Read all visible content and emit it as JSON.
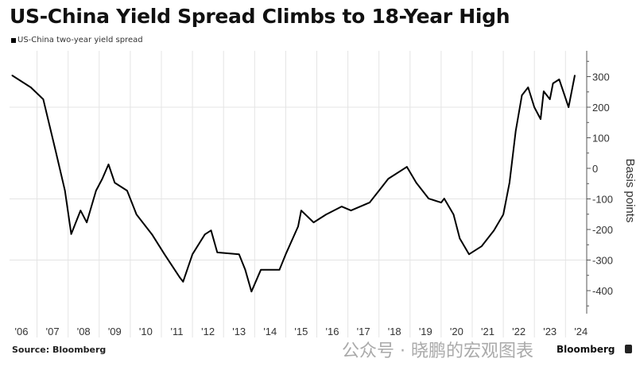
{
  "chart_data": {
    "type": "line",
    "title": "US-China Yield Spread Climbs to 18-Year High",
    "legend": [
      "US-China two-year yield spread"
    ],
    "legend_placement": "top-left",
    "ylabel": "Basis points",
    "xlabel": "",
    "ylim": [
      -460,
      380
    ],
    "y_ticks": [
      300,
      200,
      100,
      0,
      -100,
      -200,
      -300,
      -400
    ],
    "x_tick_labels": [
      "'06",
      "'07",
      "'08",
      "'09",
      "'10",
      "'11",
      "'12",
      "'13",
      "'14",
      "'15",
      "'16",
      "'17",
      "'18",
      "'19",
      "'20",
      "'21",
      "'22",
      "'23",
      "'24"
    ],
    "grid": true,
    "series": [
      {
        "name": "US-China two-year yield spread",
        "color": "#000000",
        "x": [
          2006.2,
          2006.8,
          2007.2,
          2007.6,
          2007.9,
          2008.1,
          2008.4,
          2008.6,
          2008.9,
          2009.1,
          2009.3,
          2009.5,
          2009.9,
          2010.2,
          2010.7,
          2011.1,
          2011.6,
          2011.7,
          2012.0,
          2012.4,
          2012.6,
          2012.8,
          2013.5,
          2013.7,
          2013.9,
          2014.2,
          2014.8,
          2015.0,
          2015.4,
          2015.5,
          2015.9,
          2016.3,
          2016.8,
          2017.1,
          2017.7,
          2018.0,
          2018.3,
          2018.9,
          2019.2,
          2019.6,
          2020.0,
          2020.1,
          2020.4,
          2020.6,
          2020.9,
          2021.3,
          2021.7,
          2022.0,
          2022.2,
          2022.4,
          2022.6,
          2022.8,
          2023.0,
          2023.2,
          2023.3,
          2023.5,
          2023.6,
          2023.8,
          2024.1,
          2024.3
        ],
        "values": [
          304,
          265,
          226,
          57,
          -73,
          -215,
          -138,
          -177,
          -73,
          -34,
          13,
          -47,
          -73,
          -151,
          -216,
          -281,
          -358,
          -371,
          -281,
          -216,
          -203,
          -275,
          -281,
          -332,
          -403,
          -332,
          -332,
          -281,
          -190,
          -138,
          -177,
          -151,
          -125,
          -138,
          -112,
          -73,
          -34,
          5,
          -47,
          -99,
          -112,
          -99,
          -151,
          -229,
          -281,
          -255,
          -203,
          -151,
          -47,
          122,
          239,
          265,
          200,
          161,
          252,
          226,
          278,
          291,
          200,
          304
        ]
      }
    ]
  },
  "footer": {
    "source": "Source: Bloomberg",
    "brand": "Bloomberg",
    "watermark": "公众号 · 晓鹏的宏观图表"
  }
}
